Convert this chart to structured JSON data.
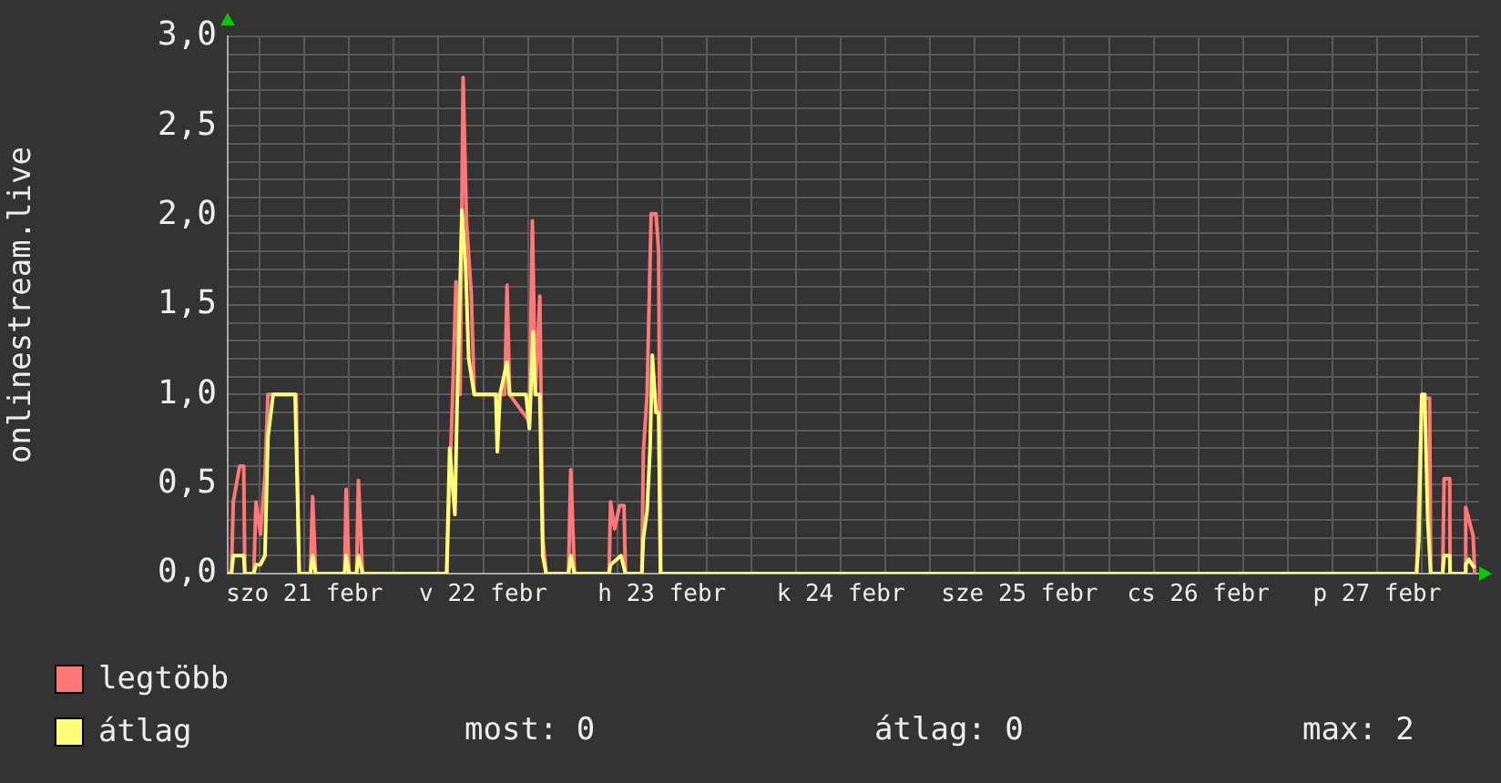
{
  "chart_data": {
    "type": "line",
    "ylabel": "onlinestream.live",
    "legend": "bottom left",
    "grid": true,
    "marker": "none",
    "line_style": "solid",
    "xlim": [
      "--02-21T01:42",
      "--02-28T01:42"
    ],
    "xticks": [
      {
        "value": "--02-21T06:00",
        "label": null
      },
      {
        "value": "--02-21T12:00",
        "label": "szo 21 febr"
      },
      {
        "value": "--02-21T18:00",
        "label": null
      },
      {
        "value": "--02-22T00:00",
        "label": null
      },
      {
        "value": "--02-22T06:00",
        "label": null
      },
      {
        "value": "--02-22T12:00",
        "label": "v 22 febr"
      },
      {
        "value": "--02-22T18:00",
        "label": null
      },
      {
        "value": "--02-23T00:00",
        "label": null
      },
      {
        "value": "--02-23T06:00",
        "label": null
      },
      {
        "value": "--02-23T12:00",
        "label": "h 23 febr"
      },
      {
        "value": "--02-23T18:00",
        "label": null
      },
      {
        "value": "--02-24T00:00",
        "label": null
      },
      {
        "value": "--02-24T06:00",
        "label": null
      },
      {
        "value": "--02-24T12:00",
        "label": "k 24 febr"
      },
      {
        "value": "--02-24T18:00",
        "label": null
      },
      {
        "value": "--02-25T00:00",
        "label": null
      },
      {
        "value": "--02-25T06:00",
        "label": null
      },
      {
        "value": "--02-25T12:00",
        "label": "sze 25 febr"
      },
      {
        "value": "--02-25T18:00",
        "label": null
      },
      {
        "value": "--02-26T00:00",
        "label": null
      },
      {
        "value": "--02-26T06:00",
        "label": null
      },
      {
        "value": "--02-26T12:00",
        "label": "cs 26 febr"
      },
      {
        "value": "--02-26T18:00",
        "label": null
      },
      {
        "value": "--02-27T00:00",
        "label": null
      },
      {
        "value": "--02-27T06:00",
        "label": null
      },
      {
        "value": "--02-27T12:00",
        "label": "p 27 febr"
      },
      {
        "value": "--02-27T18:00",
        "label": null
      },
      {
        "value": "--02-28T00:00",
        "label": null
      }
    ],
    "ylim": [
      0,
      3
    ],
    "yticks": [
      {
        "value": 0,
        "label": "0,0"
      },
      {
        "value": 0.1,
        "label": null
      },
      {
        "value": 0.2,
        "label": null
      },
      {
        "value": 0.3,
        "label": null
      },
      {
        "value": 0.4,
        "label": null
      },
      {
        "value": 0.5,
        "label": "0,5"
      },
      {
        "value": 0.6,
        "label": null
      },
      {
        "value": 0.7,
        "label": null
      },
      {
        "value": 0.8,
        "label": null
      },
      {
        "value": 0.9,
        "label": null
      },
      {
        "value": 1,
        "label": "1,0"
      },
      {
        "value": 1.1,
        "label": null
      },
      {
        "value": 1.2,
        "label": null
      },
      {
        "value": 1.3,
        "label": null
      },
      {
        "value": 1.4,
        "label": null
      },
      {
        "value": 1.5,
        "label": "1,5"
      },
      {
        "value": 1.6,
        "label": null
      },
      {
        "value": 1.7,
        "label": null
      },
      {
        "value": 1.8,
        "label": null
      },
      {
        "value": 1.9,
        "label": null
      },
      {
        "value": 2,
        "label": "2,0"
      },
      {
        "value": 2.1,
        "label": null
      },
      {
        "value": 2.2,
        "label": null
      },
      {
        "value": 2.3,
        "label": null
      },
      {
        "value": 2.4,
        "label": null
      },
      {
        "value": 2.5,
        "label": "2,5"
      },
      {
        "value": 2.6,
        "label": null
      },
      {
        "value": 2.7,
        "label": null
      },
      {
        "value": 2.8,
        "label": null
      },
      {
        "value": 2.9,
        "label": null
      },
      {
        "value": 3,
        "label": "3,0"
      }
    ],
    "annotations": [
      "most: 0",
      "átlag: 0",
      "max: 2"
    ],
    "series": [
      {
        "name": "legtöbb",
        "color": "#ff7777",
        "x": [
          "--02-21T01:42",
          "--02-21T02:12",
          "--02-21T02:27",
          "--02-21T03:18",
          "--02-21T03:51",
          "--02-21T04:00",
          "--02-21T05:12",
          "--02-21T05:30",
          "--02-21T06:06",
          "--02-21T06:42",
          "--02-21T07:06",
          "--02-21T10:54",
          "--02-21T11:03",
          "--02-21T11:18",
          "--02-21T12:48",
          "--02-21T13:06",
          "--02-21T13:30",
          "--02-21T17:24",
          "--02-21T17:36",
          "--02-21T18:00",
          "--02-21T19:00",
          "--02-21T19:15",
          "--02-21T19:48",
          "--02-22T07:06",
          "--02-22T07:24",
          "--02-22T07:54",
          "--02-22T08:21",
          "--02-22T08:54",
          "--02-22T09:18",
          "--02-22T09:45",
          "--02-22T10:24",
          "--02-22T10:48",
          "--02-22T14:54",
          "--02-22T15:12",
          "--02-22T15:33",
          "--02-22T18:12",
          "--02-22T18:36",
          "--02-22T19:00",
          "--02-22T19:36",
          "--02-22T20:00",
          "--02-22T20:27",
          "--02-22T23:27",
          "--02-22T23:45",
          "--02-23T00:15",
          "--02-23T04:54",
          "--02-23T05:06",
          "--02-23T05:39",
          "--02-23T06:18",
          "--02-23T06:54",
          "--02-23T07:06",
          "--02-23T09:18",
          "--02-23T09:30",
          "--02-23T10:00",
          "--02-23T10:33",
          "--02-23T11:12",
          "--02-23T11:33",
          "--02-23T11:48",
          "--02-27T17:18",
          "--02-27T17:36",
          "--02-27T18:00",
          "--02-27T19:03",
          "--02-27T19:12",
          "--02-27T20:48",
          "--02-27T21:00",
          "--02-27T21:45",
          "--02-27T21:48",
          "--02-27T23:45",
          "--02-27T23:54",
          "--02-28T00:54",
          "--02-28T01:06"
        ],
        "values": [
          0,
          0,
          0.4,
          0.6,
          0.6,
          0,
          0,
          0.4,
          0.22,
          0.55,
          1.0,
          1.0,
          0.5,
          0,
          0,
          0.43,
          0,
          0,
          0.47,
          0,
          0,
          0.52,
          0,
          0,
          0.4,
          1.0,
          1.63,
          1.0,
          2.77,
          1.97,
          1.56,
          1.0,
          1.0,
          1.61,
          1.0,
          0.85,
          1.97,
          1.0,
          1.55,
          0.2,
          0,
          0,
          0.58,
          0,
          0,
          0.4,
          0.25,
          0.38,
          0.38,
          0,
          0,
          0.68,
          1.0,
          2.01,
          2.01,
          1.8,
          0,
          0,
          0.45,
          0.98,
          0.98,
          0,
          0,
          0.53,
          0.53,
          0,
          0,
          0.37,
          0.21,
          0
        ]
      },
      {
        "name": "átlag",
        "color": "#ffff77",
        "x": [
          "--02-21T01:42",
          "--02-21T02:12",
          "--02-21T02:27",
          "--02-21T03:51",
          "--02-21T04:00",
          "--02-21T05:12",
          "--02-21T05:30",
          "--02-21T06:06",
          "--02-21T06:42",
          "--02-21T07:06",
          "--02-21T07:48",
          "--02-21T10:45",
          "--02-21T11:03",
          "--02-21T11:18",
          "--02-21T12:48",
          "--02-21T13:06",
          "--02-21T13:30",
          "--02-21T17:24",
          "--02-21T17:36",
          "--02-21T18:00",
          "--02-21T19:00",
          "--02-21T19:15",
          "--02-21T19:48",
          "--02-22T07:06",
          "--02-22T07:30",
          "--02-22T08:12",
          "--02-22T08:30",
          "--02-22T09:09",
          "--02-22T09:39",
          "--02-22T10:03",
          "--02-22T10:48",
          "--02-22T13:42",
          "--02-22T13:54",
          "--02-22T14:15",
          "--02-22T15:12",
          "--02-22T15:33",
          "--02-22T17:45",
          "--02-22T18:12",
          "--02-22T18:42",
          "--02-22T19:00",
          "--02-22T19:36",
          "--02-22T20:00",
          "--02-22T20:27",
          "--02-22T23:27",
          "--02-22T23:45",
          "--02-23T00:15",
          "--02-23T04:54",
          "--02-23T05:06",
          "--02-23T06:30",
          "--02-23T07:06",
          "--02-23T09:18",
          "--02-23T09:30",
          "--02-23T10:00",
          "--02-23T10:24",
          "--02-23T10:42",
          "--02-23T11:12",
          "--02-23T11:33",
          "--02-23T11:48",
          "--02-27T17:18",
          "--02-27T17:36",
          "--02-27T18:00",
          "--02-27T18:24",
          "--02-27T18:48",
          "--02-27T19:12",
          "--02-27T20:48",
          "--02-27T21:00",
          "--02-27T21:45",
          "--02-27T21:48",
          "--02-27T23:45",
          "--02-27T23:54",
          "--02-28T00:18",
          "--02-28T01:06"
        ],
        "values": [
          0,
          0,
          0.1,
          0.1,
          0,
          0,
          0.05,
          0.05,
          0.1,
          0.76,
          1.0,
          1.0,
          0.5,
          0,
          0,
          0.1,
          0,
          0,
          0.1,
          0,
          0,
          0.1,
          0,
          0,
          0.7,
          0.33,
          0.95,
          2.03,
          1.71,
          1.2,
          1.0,
          1.0,
          0.68,
          1.0,
          1.18,
          1.0,
          1.0,
          0.81,
          1.35,
          1.0,
          1.0,
          0.1,
          0,
          0,
          0.1,
          0,
          0,
          0.05,
          0.1,
          0,
          0,
          0.2,
          0.35,
          0.7,
          1.22,
          0.9,
          0.9,
          0,
          0,
          0.18,
          1.0,
          1.0,
          0.3,
          0,
          0,
          0.1,
          0.1,
          0,
          0,
          0.05,
          0.08,
          0.03
        ]
      }
    ]
  }
}
